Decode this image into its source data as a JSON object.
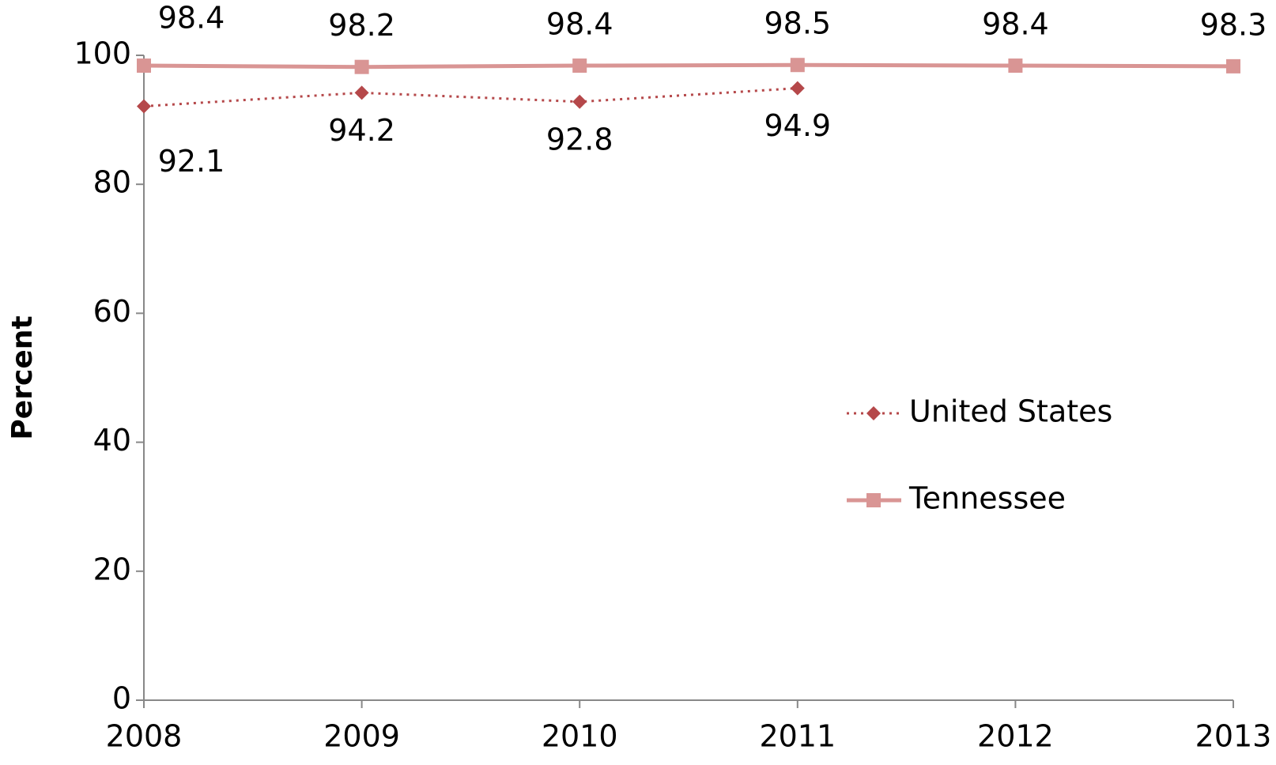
{
  "chart_data": {
    "type": "line",
    "y_label": "Percent",
    "categories": [
      "2008",
      "2009",
      "2010",
      "2011",
      "2012",
      "2013"
    ],
    "series": [
      {
        "name": "United States",
        "color": "#b5484a",
        "style": "dotted",
        "marker": "diamond",
        "values": [
          92.1,
          94.2,
          92.8,
          94.9,
          null,
          null
        ]
      },
      {
        "name": "Tennessee",
        "color": "#d99594",
        "style": "solid",
        "marker": "square",
        "values": [
          98.4,
          98.2,
          98.4,
          98.5,
          98.4,
          98.3
        ]
      }
    ],
    "ylim": [
      0,
      100
    ],
    "yticks": [
      0,
      20,
      40,
      60,
      80,
      100
    ],
    "grid": false,
    "legend": "right"
  }
}
